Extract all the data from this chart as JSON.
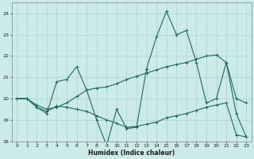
{
  "xlabel": "Humidex (Indice chaleur)",
  "background_color": "#cceae7",
  "grid_color": "#aad4d0",
  "line_color": "#1a6b5e",
  "xlim_min": -0.5,
  "xlim_max": 23.5,
  "ylim_min": 18,
  "ylim_max": 24.5,
  "yticks": [
    18,
    19,
    20,
    21,
    22,
    23,
    24
  ],
  "xticks": [
    0,
    1,
    2,
    3,
    4,
    5,
    6,
    7,
    8,
    9,
    10,
    11,
    12,
    13,
    14,
    15,
    16,
    17,
    18,
    19,
    20,
    21,
    22,
    23
  ],
  "series1_x": [
    0,
    1,
    2,
    3,
    4,
    5,
    6,
    7,
    8,
    9,
    10,
    11,
    12,
    13,
    14,
    15,
    16,
    17,
    18,
    19,
    20,
    21,
    22,
    23
  ],
  "series1_y": [
    20.0,
    20.0,
    19.6,
    19.3,
    20.8,
    20.9,
    21.5,
    20.4,
    19.0,
    17.8,
    19.5,
    18.6,
    18.65,
    21.4,
    22.9,
    24.1,
    23.0,
    23.2,
    21.7,
    19.8,
    20.0,
    21.7,
    19.3,
    18.2
  ],
  "series2_x": [
    0,
    1,
    2,
    3,
    4,
    5,
    6,
    7,
    8,
    9,
    10,
    11,
    12,
    13,
    14,
    15,
    16,
    17,
    18,
    19,
    20,
    21,
    22,
    23
  ],
  "series2_y": [
    20.0,
    20.0,
    19.6,
    19.4,
    19.65,
    19.6,
    19.5,
    19.4,
    19.2,
    19.0,
    18.85,
    18.65,
    18.7,
    18.8,
    18.9,
    19.1,
    19.2,
    19.3,
    19.45,
    19.6,
    19.7,
    19.8,
    18.3,
    18.2
  ],
  "series3_x": [
    0,
    1,
    2,
    3,
    4,
    5,
    6,
    7,
    8,
    9,
    10,
    11,
    12,
    13,
    14,
    15,
    16,
    17,
    18,
    19,
    20,
    21,
    22,
    23
  ],
  "series3_y": [
    20.0,
    20.0,
    19.7,
    19.5,
    19.6,
    19.8,
    20.1,
    20.4,
    20.5,
    20.55,
    20.7,
    20.9,
    21.05,
    21.2,
    21.35,
    21.5,
    21.6,
    21.7,
    21.85,
    22.0,
    22.05,
    21.7,
    20.0,
    19.8
  ],
  "xlabel_fontsize": 5.5,
  "tick_fontsize": 4.5,
  "linewidth": 0.8,
  "markersize": 2.5,
  "markeredgewidth": 0.7
}
